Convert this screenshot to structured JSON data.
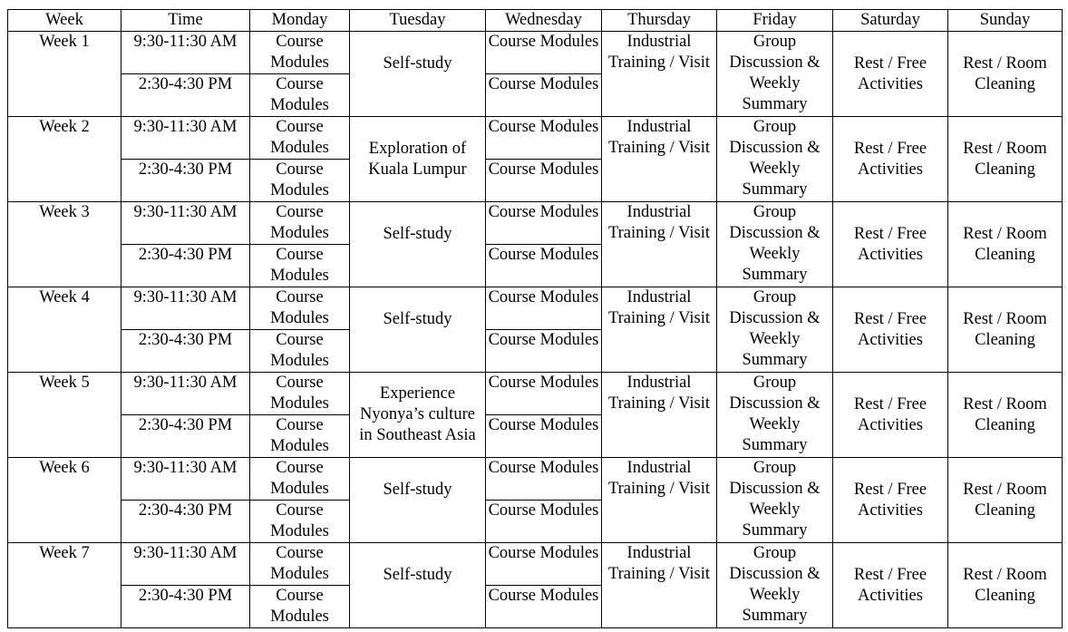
{
  "headers": [
    "Week",
    "Time",
    "Monday",
    "Tuesday",
    "Wednesday",
    "Thursday",
    "Friday",
    "Saturday",
    "Sunday"
  ],
  "weeks": [
    {
      "week": "Week 1",
      "tuesday": "Self-study"
    },
    {
      "week": "Week 2",
      "tuesday": "Exploration of Kuala Lumpur"
    },
    {
      "week": "Week 3",
      "tuesday": "Self-study"
    },
    {
      "week": "Week 4",
      "tuesday": "Self-study"
    },
    {
      "week": "Week 5",
      "tuesday": "Experience Nyonya’s culture in Southeast Asia"
    },
    {
      "week": "Week 6",
      "tuesday": "Self-study"
    },
    {
      "week": "Week 7",
      "tuesday": "Self-study"
    }
  ],
  "times": [
    "9:30-11:30 AM",
    "2:30-4:30 PM"
  ],
  "course": "Course Modules",
  "thursday": "Industrial Training / Visit",
  "friday": "Group Discussion & Weekly Summary",
  "saturday": "Rest / Free Activities",
  "sunday": "Rest / Room Cleaning"
}
